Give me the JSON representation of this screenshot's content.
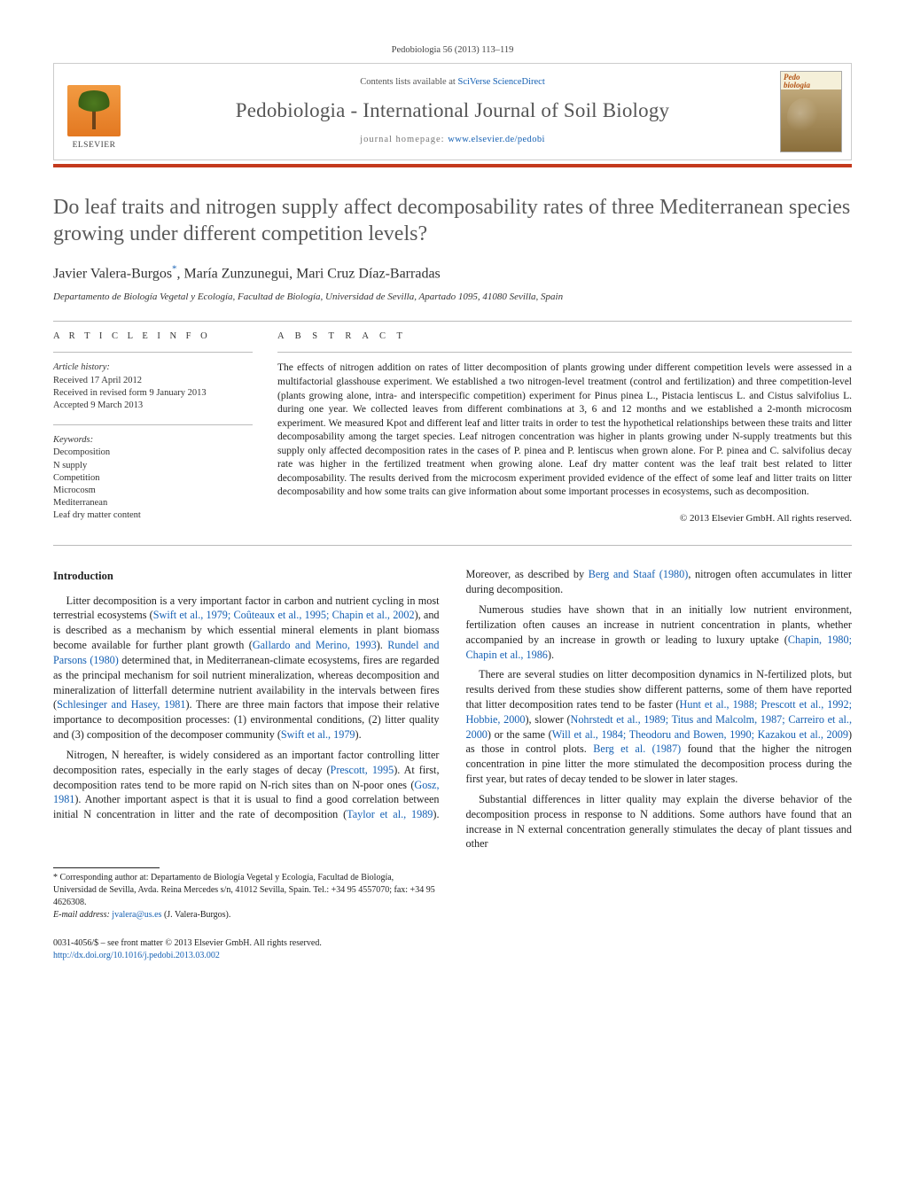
{
  "page": {
    "running_head": "Pedobiologia 56 (2013) 113–119",
    "banner": {
      "contents_prefix": "Contents lists available at ",
      "contents_link_text": "SciVerse ScienceDirect",
      "journal": "Pedobiologia - International Journal of Soil Biology",
      "homepage_prefix": "journal homepage: ",
      "homepage_link_text": "www.elsevier.de/pedobi",
      "publisher_word": "ELSEVIER",
      "cover_label_top": "Pedo",
      "cover_label_bottom": "biologia"
    },
    "colors": {
      "rule": "#c43a1d",
      "link": "#1560b3",
      "title": "#5a5a5a",
      "body": "#222222"
    }
  },
  "article": {
    "title": "Do leaf traits and nitrogen supply affect decomposability rates of three Mediterranean species growing under different competition levels?",
    "authors_html": "Javier Valera-Burgos",
    "authors_sup": "*",
    "authors_rest": ", María Zunzunegui, Mari Cruz Díaz-Barradas",
    "affiliation": "Departamento de Biología Vegetal y Ecología, Facultad de Biología, Universidad de Sevilla, Apartado 1095, 41080 Sevilla, Spain",
    "info_head": "A R T I C L E   I N F O",
    "history_label": "Article history:",
    "history": {
      "received": "Received 17 April 2012",
      "revised": "Received in revised form 9 January 2013",
      "accepted": "Accepted 9 March 2013"
    },
    "keywords_label": "Keywords:",
    "keywords": [
      "Decomposition",
      "N supply",
      "Competition",
      "Microcosm",
      "Mediterranean",
      "Leaf dry matter content"
    ],
    "abstract_head": "A B S T R A C T",
    "abstract": "The effects of nitrogen addition on rates of litter decomposition of plants growing under different competition levels were assessed in a multifactorial glasshouse experiment. We established a two nitrogen-level treatment (control and fertilization) and three competition-level (plants growing alone, intra- and interspecific competition) experiment for Pinus pinea L., Pistacia lentiscus L. and Cistus salvifolius L. during one year. We collected leaves from different combinations at 3, 6 and 12 months and we established a 2-month microcosm experiment. We measured Kpot and different leaf and litter traits in order to test the hypothetical relationships between these traits and litter decomposability among the target species. Leaf nitrogen concentration was higher in plants growing under N-supply treatments but this supply only affected decomposition rates in the cases of P. pinea and P. lentiscus when grown alone. For P. pinea and C. salvifolius decay rate was higher in the fertilized treatment when growing alone. Leaf dry matter content was the leaf trait best related to litter decomposability. The results derived from the microcosm experiment provided evidence of the effect of some leaf and litter traits on litter decomposability and how some traits can give information about some important processes in ecosystems, such as decomposition.",
    "copyright": "© 2013 Elsevier GmbH. All rights reserved."
  },
  "body": {
    "section_heading": "Introduction",
    "p1_a": "Litter decomposition is a very important factor in carbon and nutrient cycling in most terrestrial ecosystems (",
    "p1_link1": "Swift et al., 1979; Coûteaux et al., 1995; Chapin et al., 2002",
    "p1_b": "), and is described as a mechanism by which essential mineral elements in plant biomass become available for further plant growth (",
    "p1_link2": "Gallardo and Merino, 1993",
    "p1_c": "). ",
    "p1_link3": "Rundel and Parsons (1980)",
    "p1_d": " determined that, in Mediterranean-climate ecosystems, fires are regarded as the principal mechanism for soil nutrient mineralization, whereas decomposition and mineralization of litterfall determine nutrient availability in the intervals between fires (",
    "p1_link4": "Schlesinger and Hasey, 1981",
    "p1_e": "). There are three main factors that impose their relative importance to decomposition processes: (1) environmental conditions, (2) litter quality and (3) composition of the decomposer community (",
    "p1_link5": "Swift et al., 1979",
    "p1_f": ").",
    "p2_a": "Nitrogen, N hereafter, is widely considered as an important factor controlling litter decomposition rates, especially in the early stages of decay (",
    "p2_link1": "Prescott, 1995",
    "p2_b": "). At first, decomposition rates tend ",
    "p2_c": "to be more rapid on N-rich sites than on N-poor ones (",
    "p2_link2": "Gosz, 1981",
    "p2_d": "). Another important aspect is that it is usual to find a good correlation between initial N concentration in litter and the rate of decomposition (",
    "p2_link3": "Taylor et al., 1989",
    "p2_e": "). Moreover, as described by ",
    "p2_link4": "Berg and Staaf (1980)",
    "p2_f": ", nitrogen often accumulates in litter during decomposition.",
    "p3_a": "Numerous studies have shown that in an initially low nutrient environment, fertilization often causes an increase in nutrient concentration in plants, whether accompanied by an increase in growth or leading to luxury uptake (",
    "p3_link1": "Chapin, 1980; Chapin et al., 1986",
    "p3_b": ").",
    "p4_a": "There are several studies on litter decomposition dynamics in N-fertilized plots, but results derived from these studies show different patterns, some of them have reported that litter decomposition rates tend to be faster (",
    "p4_link1": "Hunt et al., 1988; Prescott et al., 1992; Hobbie, 2000",
    "p4_b": "), slower (",
    "p4_link2": "Nohrstedt et al., 1989; Titus and Malcolm, 1987; Carreiro et al., 2000",
    "p4_c": ") or the same (",
    "p4_link3": "Will et al., 1984; Theodoru and Bowen, 1990; Kazakou et al., 2009",
    "p4_d": ") as those in control plots. ",
    "p4_link4": "Berg et al. (1987)",
    "p4_e": " found that the higher the nitrogen concentration in pine litter the more stimulated the decomposition process during the first year, but rates of decay tended to be slower in later stages.",
    "p5": "Substantial differences in litter quality may explain the diverse behavior of the decomposition process in response to N additions. Some authors have found that an increase in N external concentration generally stimulates the decay of plant tissues and other"
  },
  "footnotes": {
    "corr_star": "*",
    "corr_text": " Corresponding author at: Departamento de Biología Vegetal y Ecología, Facultad de Biología, Universidad de Sevilla, Avda. Reina Mercedes s/n, 41012 Sevilla, Spain. Tel.: +34 95 4557070; fax: +34 95 4626308.",
    "email_label": "E-mail address: ",
    "email": "jvalera@us.es",
    "email_tail": " (J. Valera-Burgos).",
    "issn_line": "0031-4056/$ – see front matter © 2013 Elsevier GmbH. All rights reserved.",
    "doi_url": "http://dx.doi.org/10.1016/j.pedobi.2013.03.002"
  }
}
